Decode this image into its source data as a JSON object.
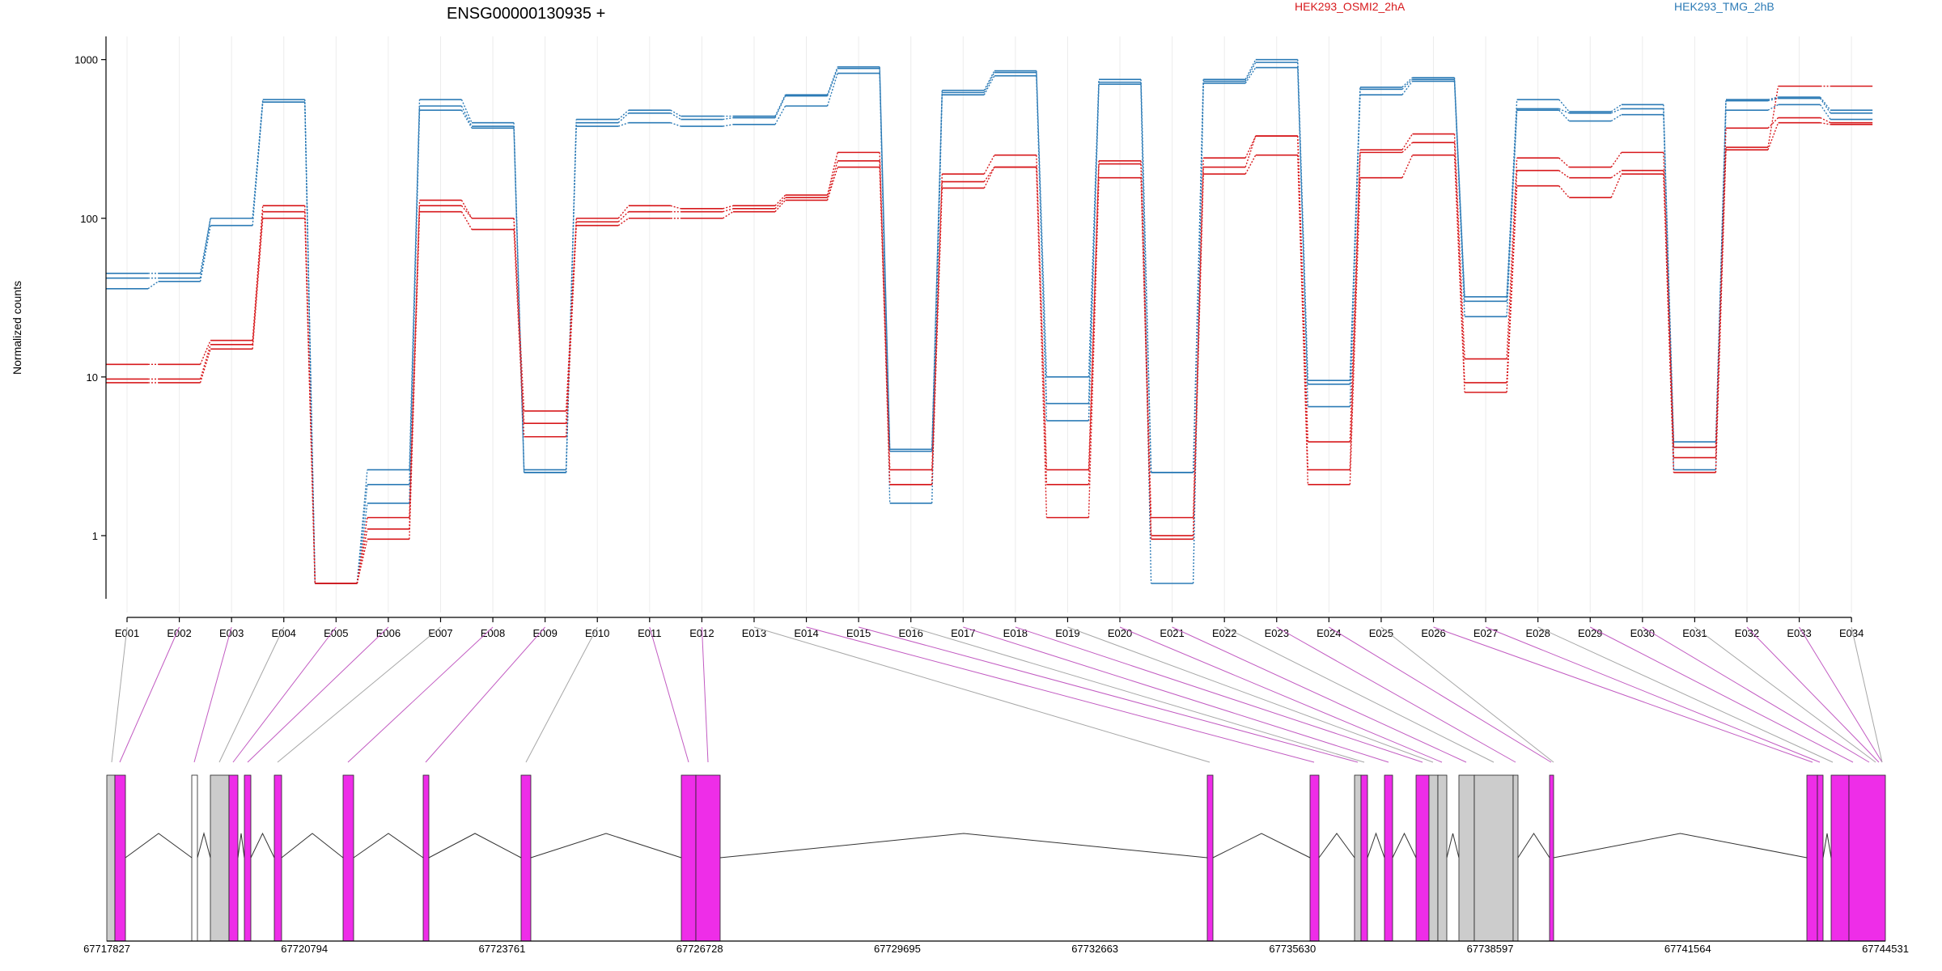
{
  "chart_data": {
    "type": "line",
    "title": "ENSG00000130935 +",
    "ylabel": "Normalized counts",
    "xlabel": "",
    "yscale": "log",
    "ylim": [
      0.4,
      1400
    ],
    "yticks": [
      1,
      10,
      100,
      1000
    ],
    "ytick_labels": [
      "1",
      "10",
      "100",
      "1000"
    ],
    "grid": "vertical",
    "categories": [
      "E001",
      "E002",
      "E003",
      "E004",
      "E005",
      "E006",
      "E007",
      "E008",
      "E009",
      "E010",
      "E011",
      "E012",
      "E013",
      "E014",
      "E015",
      "E016",
      "E017",
      "E018",
      "E019",
      "E020",
      "E021",
      "E022",
      "E023",
      "E024",
      "E025",
      "E026",
      "E027",
      "E028",
      "E029",
      "E030",
      "E031",
      "E032",
      "E033",
      "E034"
    ],
    "legend": [
      {
        "name": "HEK293_OSMI2_2hA",
        "color": "#d7191c"
      },
      {
        "name": "HEK293_TMG_2hB",
        "color": "#2c7bb6"
      }
    ],
    "series": [
      {
        "group": "HEK293_TMG_2hB",
        "color": "#2c7bb6",
        "values": [
          45,
          45,
          100,
          560,
          0.5,
          2.6,
          560,
          400,
          2.6,
          420,
          480,
          440,
          440,
          600,
          900,
          3.4,
          640,
          850,
          10,
          750,
          2.5,
          750,
          1000,
          9.5,
          670,
          770,
          32,
          560,
          470,
          520,
          3.9,
          560,
          580,
          480
        ]
      },
      {
        "group": "HEK293_TMG_2hB",
        "color": "#2c7bb6",
        "values": [
          42,
          42,
          100,
          540,
          0.5,
          2.1,
          510,
          380,
          2.5,
          400,
          460,
          420,
          430,
          590,
          880,
          3.5,
          620,
          830,
          6.8,
          720,
          2.5,
          730,
          960,
          9.0,
          650,
          750,
          30,
          490,
          460,
          490,
          3.6,
          550,
          570,
          460
        ]
      },
      {
        "group": "HEK293_TMG_2hB",
        "color": "#2c7bb6",
        "values": [
          36,
          40,
          90,
          540,
          0.5,
          1.6,
          480,
          370,
          2.5,
          380,
          400,
          380,
          390,
          510,
          820,
          1.6,
          600,
          790,
          5.3,
          700,
          0.5,
          710,
          890,
          6.5,
          600,
          730,
          24,
          480,
          410,
          450,
          2.6,
          480,
          520,
          420
        ]
      },
      {
        "group": "HEK293_OSMI2_2hA",
        "color": "#d7191c",
        "values": [
          12,
          12,
          17,
          120,
          0.5,
          1.3,
          130,
          100,
          6.1,
          100,
          120,
          115,
          120,
          140,
          260,
          2.6,
          190,
          250,
          2.6,
          230,
          1.3,
          240,
          330,
          3.9,
          270,
          340,
          13,
          240,
          210,
          260,
          3.6,
          280,
          680,
          680
        ]
      },
      {
        "group": "HEK293_OSMI2_2hA",
        "color": "#d7191c",
        "values": [
          9.7,
          9.7,
          16,
          110,
          0.5,
          1.1,
          120,
          100,
          5.1,
          95,
          110,
          110,
          115,
          135,
          230,
          2.1,
          170,
          210,
          2.1,
          220,
          1.0,
          210,
          330,
          2.6,
          260,
          300,
          9.2,
          200,
          180,
          200,
          3.1,
          370,
          430,
          400
        ]
      },
      {
        "group": "HEK293_OSMI2_2hA",
        "color": "#d7191c",
        "values": [
          9.2,
          9.2,
          15,
          100,
          0.5,
          0.95,
          110,
          85,
          4.2,
          90,
          100,
          100,
          110,
          130,
          210,
          2.1,
          155,
          210,
          1.3,
          180,
          0.95,
          190,
          250,
          2.1,
          180,
          250,
          8.0,
          160,
          135,
          190,
          2.5,
          270,
          400,
          390
        ]
      }
    ],
    "gene_model": {
      "coordinate_ticks": [
        "67717827",
        "67720794",
        "67723761",
        "67726728",
        "67729695",
        "67732663",
        "67735630",
        "67738597",
        "67741564",
        "67744531"
      ],
      "exon_colors": {
        "highlighted": "#ee2de8",
        "other": "#cccccc",
        "empty": "#ffffff"
      }
    }
  }
}
